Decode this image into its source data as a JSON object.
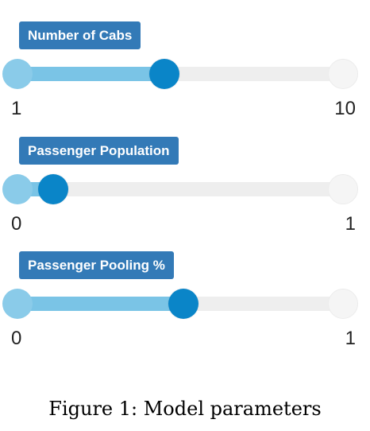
{
  "colors": {
    "badge_bg": "#337ab7",
    "badge_text": "#ffffff",
    "track_bg": "#eeeeee",
    "track_fill": "#7ac4e6",
    "handle_active": "#0a85c8",
    "handle_min": "#8acbe9",
    "handle_max": "#f5f5f5"
  },
  "sliders": [
    {
      "label": "Number of Cabs",
      "min_label": "1",
      "max_label": "10",
      "min": 1,
      "max": 10,
      "value_fraction": 0.45
    },
    {
      "label": "Passenger Population",
      "min_label": "0",
      "max_label": "1",
      "min": 0,
      "max": 1,
      "value_fraction": 0.11
    },
    {
      "label": "Passenger Pooling %",
      "min_label": "0",
      "max_label": "1",
      "min": 0,
      "max": 1,
      "value_fraction": 0.51
    }
  ],
  "caption": "Figure 1: Model parameters"
}
